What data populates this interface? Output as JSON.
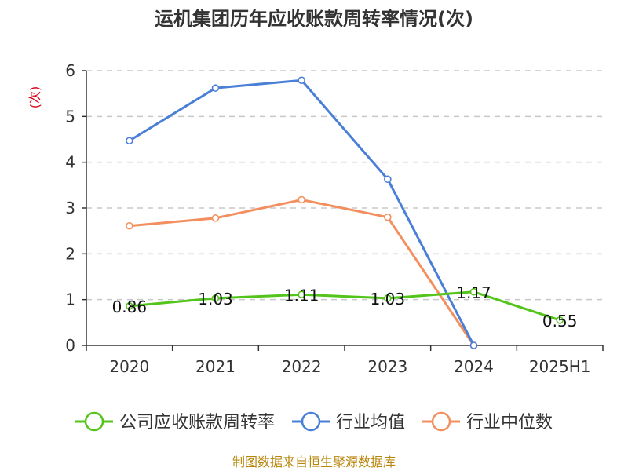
{
  "chart_data": {
    "type": "line",
    "title": "运机集团历年应收账款周转率情况(次)",
    "ylabel": "(次)",
    "categories": [
      "2020",
      "2021",
      "2022",
      "2023",
      "2024",
      "2025H1"
    ],
    "ylim": [
      0,
      6
    ],
    "yticks": [
      "0",
      "1",
      "2",
      "3",
      "4",
      "5",
      "6"
    ],
    "grid": true,
    "legend_position": "bottom",
    "series": [
      {
        "name": "公司应收账款周转率",
        "color": "#52c41a",
        "values": [
          0.86,
          1.03,
          1.11,
          1.03,
          1.17,
          0.55
        ],
        "labels": [
          "0.86",
          "1.03",
          "1.11",
          "1.03",
          "1.17",
          "0.55"
        ]
      },
      {
        "name": "行业均值",
        "color": "#4a7fd8",
        "values": [
          4.47,
          5.62,
          5.79,
          3.63,
          0,
          null
        ]
      },
      {
        "name": "行业中位数",
        "color": "#f38f5e",
        "values": [
          2.61,
          2.78,
          3.18,
          2.8,
          0,
          null
        ]
      }
    ]
  },
  "footer": {
    "source": "制图数据来自恒生聚源数据库"
  }
}
